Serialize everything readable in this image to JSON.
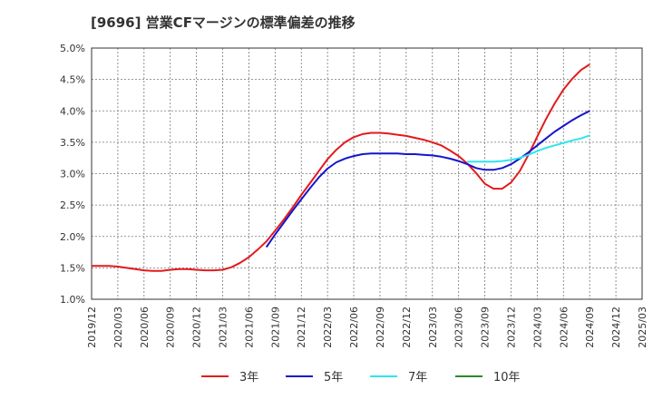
{
  "chart_data": {
    "type": "line",
    "title": "[9696]  営業CFマージンの標準偏差の推移",
    "xlabel": "",
    "ylabel": "",
    "ylim": [
      1.0,
      5.0
    ],
    "xlim": [
      "2019/12",
      "2025/03"
    ],
    "grid": true,
    "legend_position": "bottom",
    "x_tick_labels": [
      "2019/12",
      "2020/03",
      "2020/06",
      "2020/09",
      "2020/12",
      "2021/03",
      "2021/06",
      "2021/09",
      "2021/12",
      "2022/03",
      "2022/06",
      "2022/09",
      "2022/12",
      "2023/03",
      "2023/06",
      "2023/09",
      "2023/12",
      "2024/03",
      "2024/06",
      "2024/09",
      "2024/12",
      "2025/03"
    ],
    "y_tick_labels": [
      "1.0%",
      "1.5%",
      "2.0%",
      "2.5%",
      "3.0%",
      "3.5%",
      "4.0%",
      "4.5%",
      "5.0%"
    ],
    "series": [
      {
        "name": "3年",
        "color": "#e31a1c",
        "x": [
          "2019/12",
          "2020/01",
          "2020/02",
          "2020/03",
          "2020/04",
          "2020/05",
          "2020/06",
          "2020/07",
          "2020/08",
          "2020/09",
          "2020/10",
          "2020/11",
          "2020/12",
          "2021/01",
          "2021/02",
          "2021/03",
          "2021/04",
          "2021/05",
          "2021/06",
          "2021/07",
          "2021/08",
          "2021/09",
          "2021/10",
          "2021/11",
          "2021/12",
          "2022/01",
          "2022/02",
          "2022/03",
          "2022/04",
          "2022/05",
          "2022/06",
          "2022/07",
          "2022/08",
          "2022/09",
          "2022/10",
          "2022/11",
          "2022/12",
          "2023/01",
          "2023/02",
          "2023/03",
          "2023/04",
          "2023/05",
          "2023/06",
          "2023/07",
          "2023/08",
          "2023/09",
          "2023/10",
          "2023/11",
          "2023/12",
          "2024/01",
          "2024/02",
          "2024/03",
          "2024/04",
          "2024/05",
          "2024/06",
          "2024/07",
          "2024/08",
          "2024/09"
        ],
        "values": [
          1.53,
          1.53,
          1.53,
          1.52,
          1.5,
          1.48,
          1.46,
          1.45,
          1.45,
          1.47,
          1.48,
          1.48,
          1.47,
          1.46,
          1.46,
          1.47,
          1.51,
          1.58,
          1.67,
          1.79,
          1.92,
          2.09,
          2.27,
          2.46,
          2.66,
          2.85,
          3.04,
          3.23,
          3.38,
          3.5,
          3.58,
          3.63,
          3.65,
          3.65,
          3.64,
          3.62,
          3.6,
          3.57,
          3.54,
          3.5,
          3.45,
          3.37,
          3.28,
          3.16,
          3.01,
          2.84,
          2.76,
          2.76,
          2.86,
          3.04,
          3.3,
          3.59,
          3.87,
          4.12,
          4.34,
          4.51,
          4.65,
          4.74
        ]
      },
      {
        "name": "5年",
        "color": "#1515cc",
        "x": [
          "2021/08",
          "2021/09",
          "2021/10",
          "2021/11",
          "2021/12",
          "2022/01",
          "2022/02",
          "2022/03",
          "2022/04",
          "2022/05",
          "2022/06",
          "2022/07",
          "2022/08",
          "2022/09",
          "2022/10",
          "2022/11",
          "2022/12",
          "2023/01",
          "2023/02",
          "2023/03",
          "2023/04",
          "2023/05",
          "2023/06",
          "2023/07",
          "2023/08",
          "2023/09",
          "2023/10",
          "2023/11",
          "2023/12",
          "2024/01",
          "2024/02",
          "2024/03",
          "2024/04",
          "2024/05",
          "2024/06",
          "2024/07",
          "2024/08",
          "2024/09"
        ],
        "values": [
          1.83,
          2.03,
          2.22,
          2.41,
          2.59,
          2.77,
          2.94,
          3.08,
          3.18,
          3.24,
          3.28,
          3.31,
          3.32,
          3.32,
          3.32,
          3.32,
          3.31,
          3.31,
          3.3,
          3.29,
          3.27,
          3.24,
          3.2,
          3.15,
          3.09,
          3.06,
          3.06,
          3.09,
          3.15,
          3.24,
          3.34,
          3.45,
          3.56,
          3.67,
          3.76,
          3.85,
          3.93,
          4.0
        ]
      },
      {
        "name": "7年",
        "color": "#2ee6ee",
        "x": [
          "2023/07",
          "2023/08",
          "2023/09",
          "2023/10",
          "2023/11",
          "2023/12",
          "2024/01",
          "2024/02",
          "2024/03",
          "2024/04",
          "2024/05",
          "2024/06",
          "2024/07",
          "2024/08",
          "2024/09"
        ],
        "values": [
          3.19,
          3.19,
          3.19,
          3.19,
          3.2,
          3.22,
          3.25,
          3.3,
          3.36,
          3.41,
          3.45,
          3.49,
          3.53,
          3.56,
          3.61
        ]
      },
      {
        "name": "10年",
        "color": "#2a8a2a",
        "x": [],
        "values": []
      }
    ]
  }
}
